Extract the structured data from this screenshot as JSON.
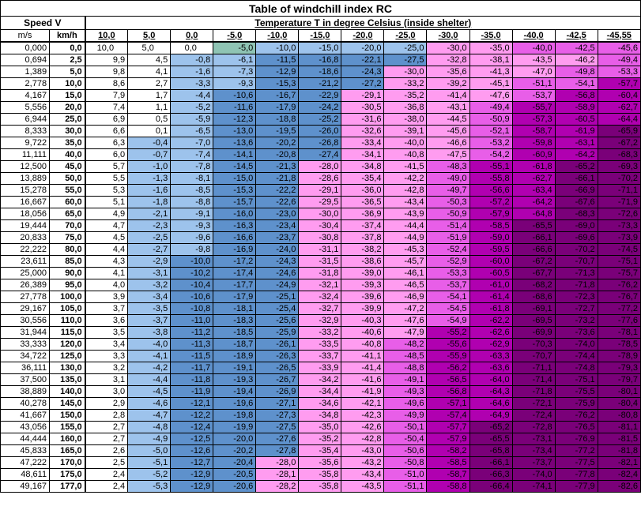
{
  "title": "Table of windchill index RC",
  "subtitle": "Temperature T in degree Celsius (inside shelter)",
  "speed_header": "Speed V",
  "unit_ms": "m/s",
  "unit_kmh": "km/h",
  "temperatures": [
    "10,0",
    "5,0",
    "0,0",
    "-5,0",
    "-10,0",
    "-15,0",
    "-20,0",
    "-25,0",
    "-30,0",
    "-35,0",
    "-40,0",
    "-42,5",
    "-45,55"
  ],
  "colors": {
    "white": "#ffffff",
    "light_blue": "#9dc3ec",
    "mid_blue": "#5e91cc",
    "teal": "#8fc4b4",
    "pink": "#ff9cf0",
    "magenta": "#e85ee8",
    "purple": "#b000b0",
    "dark_purple": "#7a0079",
    "light_lavender": "#e8a8e8"
  },
  "rows": [
    {
      "ms": "0,000",
      "kmh": "0,0",
      "v": [
        "10,0",
        "5,0",
        "0,0",
        "-5,0",
        "-10,0",
        "-15,0",
        "-20,0",
        "-25,0",
        "-30,0",
        "-35,0",
        "-40,0",
        "-42,5",
        "-45,6"
      ]
    },
    {
      "ms": "0,694",
      "kmh": "2,5",
      "v": [
        "9,9",
        "4,5",
        "-0,8",
        "-6,1",
        "-11,5",
        "-16,8",
        "-22,1",
        "-27,5",
        "-32,8",
        "-38,1",
        "-43,5",
        "-46,2",
        "-49,4"
      ]
    },
    {
      "ms": "1,389",
      "kmh": "5,0",
      "v": [
        "9,8",
        "4,1",
        "-1,6",
        "-7,3",
        "-12,9",
        "-18,6",
        "-24,3",
        "-30,0",
        "-35,6",
        "-41,3",
        "-47,0",
        "-49,8",
        "-53,3"
      ]
    },
    {
      "ms": "2,778",
      "kmh": "10,0",
      "v": [
        "8,6",
        "2,7",
        "-3,3",
        "-9,3",
        "-15,3",
        "-21,2",
        "-27,2",
        "-33,2",
        "-39,2",
        "-45,1",
        "-51,1",
        "-54,1",
        "-57,7"
      ]
    },
    {
      "ms": "4,167",
      "kmh": "15,0",
      "v": [
        "7,9",
        "1,7",
        "-4,4",
        "-10,6",
        "-16,7",
        "-22,9",
        "-29,1",
        "-35,2",
        "-41,4",
        "-47,6",
        "-53,7",
        "-56,8",
        "-60,4"
      ]
    },
    {
      "ms": "5,556",
      "kmh": "20,0",
      "v": [
        "7,4",
        "1,1",
        "-5,2",
        "-11,6",
        "-17,9",
        "-24,2",
        "-30,5",
        "-36,8",
        "-43,1",
        "-49,4",
        "-55,7",
        "-58,9",
        "-62,7"
      ]
    },
    {
      "ms": "6,944",
      "kmh": "25,0",
      "v": [
        "6,9",
        "0,5",
        "-5,9",
        "-12,3",
        "-18,8",
        "-25,2",
        "-31,6",
        "-38,0",
        "-44,5",
        "-50,9",
        "-57,3",
        "-60,5",
        "-64,4"
      ]
    },
    {
      "ms": "8,333",
      "kmh": "30,0",
      "v": [
        "6,6",
        "0,1",
        "-6,5",
        "-13,0",
        "-19,5",
        "-26,0",
        "-32,6",
        "-39,1",
        "-45,6",
        "-52,1",
        "-58,7",
        "-61,9",
        "-65,9"
      ]
    },
    {
      "ms": "9,722",
      "kmh": "35,0",
      "v": [
        "6,3",
        "-0,4",
        "-7,0",
        "-13,6",
        "-20,2",
        "-26,8",
        "-33,4",
        "-40,0",
        "-46,6",
        "-53,2",
        "-59,8",
        "-63,1",
        "-67,2"
      ]
    },
    {
      "ms": "11,111",
      "kmh": "40,0",
      "v": [
        "6,0",
        "-0,7",
        "-7,4",
        "-14,1",
        "-20,8",
        "-27,4",
        "-34,1",
        "-40,8",
        "-47,5",
        "-54,2",
        "-60,9",
        "-64,2",
        "-68,3"
      ]
    },
    {
      "ms": "12,500",
      "kmh": "45,0",
      "v": [
        "5,7",
        "-1,0",
        "-7,8",
        "-14,5",
        "-21,3",
        "-28,0",
        "-34,8",
        "-41,5",
        "-48,3",
        "-55,1",
        "-61,8",
        "-65,2",
        "-69,3"
      ]
    },
    {
      "ms": "13,889",
      "kmh": "50,0",
      "v": [
        "5,5",
        "-1,3",
        "-8,1",
        "-15,0",
        "-21,8",
        "-28,6",
        "-35,4",
        "-42,2",
        "-49,0",
        "-55,8",
        "-62,7",
        "-66,1",
        "-70,2"
      ]
    },
    {
      "ms": "15,278",
      "kmh": "55,0",
      "v": [
        "5,3",
        "-1,6",
        "-8,5",
        "-15,3",
        "-22,2",
        "-29,1",
        "-36,0",
        "-42,8",
        "-49,7",
        "-56,6",
        "-63,4",
        "-66,9",
        "-71,1"
      ]
    },
    {
      "ms": "16,667",
      "kmh": "60,0",
      "v": [
        "5,1",
        "-1,8",
        "-8,8",
        "-15,7",
        "-22,6",
        "-29,5",
        "-36,5",
        "-43,4",
        "-50,3",
        "-57,2",
        "-64,2",
        "-67,6",
        "-71,9"
      ]
    },
    {
      "ms": "18,056",
      "kmh": "65,0",
      "v": [
        "4,9",
        "-2,1",
        "-9,1",
        "-16,0",
        "-23,0",
        "-30,0",
        "-36,9",
        "-43,9",
        "-50,9",
        "-57,9",
        "-64,8",
        "-68,3",
        "-72,6"
      ]
    },
    {
      "ms": "19,444",
      "kmh": "70,0",
      "v": [
        "4,7",
        "-2,3",
        "-9,3",
        "-16,3",
        "-23,4",
        "-30,4",
        "-37,4",
        "-44,4",
        "-51,4",
        "-58,5",
        "-65,5",
        "-69,0",
        "-73,3"
      ]
    },
    {
      "ms": "20,833",
      "kmh": "75,0",
      "v": [
        "4,5",
        "-2,5",
        "-9,6",
        "-16,6",
        "-23,7",
        "-30,8",
        "-37,8",
        "-44,9",
        "-51,9",
        "-59,0",
        "-66,1",
        "-69,6",
        "-73,9"
      ]
    },
    {
      "ms": "22,222",
      "kmh": "80,0",
      "v": [
        "4,4",
        "-2,7",
        "-9,8",
        "-16,9",
        "-24,0",
        "-31,1",
        "-38,2",
        "-45,3",
        "-52,4",
        "-59,5",
        "-66,6",
        "-70,2",
        "-74,5"
      ]
    },
    {
      "ms": "23,611",
      "kmh": "85,0",
      "v": [
        "4,3",
        "-2,9",
        "-10,0",
        "-17,2",
        "-24,3",
        "-31,5",
        "-38,6",
        "-45,7",
        "-52,9",
        "-60,0",
        "-67,2",
        "-70,7",
        "-75,1"
      ]
    },
    {
      "ms": "25,000",
      "kmh": "90,0",
      "v": [
        "4,1",
        "-3,1",
        "-10,2",
        "-17,4",
        "-24,6",
        "-31,8",
        "-39,0",
        "-46,1",
        "-53,3",
        "-60,5",
        "-67,7",
        "-71,3",
        "-75,7"
      ]
    },
    {
      "ms": "26,389",
      "kmh": "95,0",
      "v": [
        "4,0",
        "-3,2",
        "-10,4",
        "-17,7",
        "-24,9",
        "-32,1",
        "-39,3",
        "-46,5",
        "-53,7",
        "-61,0",
        "-68,2",
        "-71,8",
        "-76,2"
      ]
    },
    {
      "ms": "27,778",
      "kmh": "100,0",
      "v": [
        "3,9",
        "-3,4",
        "-10,6",
        "-17,9",
        "-25,1",
        "-32,4",
        "-39,6",
        "-46,9",
        "-54,1",
        "-61,4",
        "-68,6",
        "-72,3",
        "-76,7"
      ]
    },
    {
      "ms": "29,167",
      "kmh": "105,0",
      "v": [
        "3,7",
        "-3,5",
        "-10,8",
        "-18,1",
        "-25,4",
        "-32,7",
        "-39,9",
        "-47,2",
        "-54,5",
        "-61,8",
        "-69,1",
        "-72,7",
        "-77,2"
      ]
    },
    {
      "ms": "30,556",
      "kmh": "110,0",
      "v": [
        "3,6",
        "-3,7",
        "-11,0",
        "-18,3",
        "-25,6",
        "-32,9",
        "-40,3",
        "-47,6",
        "-54,9",
        "-62,2",
        "-69,5",
        "-73,2",
        "-77,6"
      ]
    },
    {
      "ms": "31,944",
      "kmh": "115,0",
      "v": [
        "3,5",
        "-3,8",
        "-11,2",
        "-18,5",
        "-25,9",
        "-33,2",
        "-40,6",
        "-47,9",
        "-55,2",
        "-62,6",
        "-69,9",
        "-73,6",
        "-78,1"
      ]
    },
    {
      "ms": "33,333",
      "kmh": "120,0",
      "v": [
        "3,4",
        "-4,0",
        "-11,3",
        "-18,7",
        "-26,1",
        "-33,5",
        "-40,8",
        "-48,2",
        "-55,6",
        "-62,9",
        "-70,3",
        "-74,0",
        "-78,5"
      ]
    },
    {
      "ms": "34,722",
      "kmh": "125,0",
      "v": [
        "3,3",
        "-4,1",
        "-11,5",
        "-18,9",
        "-26,3",
        "-33,7",
        "-41,1",
        "-48,5",
        "-55,9",
        "-63,3",
        "-70,7",
        "-74,4",
        "-78,9"
      ]
    },
    {
      "ms": "36,111",
      "kmh": "130,0",
      "v": [
        "3,2",
        "-4,2",
        "-11,7",
        "-19,1",
        "-26,5",
        "-33,9",
        "-41,4",
        "-48,8",
        "-56,2",
        "-63,6",
        "-71,1",
        "-74,8",
        "-79,3"
      ]
    },
    {
      "ms": "37,500",
      "kmh": "135,0",
      "v": [
        "3,1",
        "-4,4",
        "-11,8",
        "-19,3",
        "-26,7",
        "-34,2",
        "-41,6",
        "-49,1",
        "-56,5",
        "-64,0",
        "-71,4",
        "-75,1",
        "-79,7"
      ]
    },
    {
      "ms": "38,889",
      "kmh": "140,0",
      "v": [
        "3,0",
        "-4,5",
        "-11,9",
        "-19,4",
        "-26,9",
        "-34,4",
        "-41,9",
        "-49,3",
        "-56,8",
        "-64,3",
        "-71,8",
        "-75,5",
        "-80,1"
      ]
    },
    {
      "ms": "40,278",
      "kmh": "145,0",
      "v": [
        "2,9",
        "-4,6",
        "-12,1",
        "-19,6",
        "-27,1",
        "-34,6",
        "-42,1",
        "-49,6",
        "-57,1",
        "-64,6",
        "-72,1",
        "-75,9",
        "-80,4"
      ]
    },
    {
      "ms": "41,667",
      "kmh": "150,0",
      "v": [
        "2,8",
        "-4,7",
        "-12,2",
        "-19,8",
        "-27,3",
        "-34,8",
        "-42,3",
        "-49,9",
        "-57,4",
        "-64,9",
        "-72,4",
        "-76,2",
        "-80,8"
      ]
    },
    {
      "ms": "43,056",
      "kmh": "155,0",
      "v": [
        "2,7",
        "-4,8",
        "-12,4",
        "-19,9",
        "-27,5",
        "-35,0",
        "-42,6",
        "-50,1",
        "-57,7",
        "-65,2",
        "-72,8",
        "-76,5",
        "-81,1"
      ]
    },
    {
      "ms": "44,444",
      "kmh": "160,0",
      "v": [
        "2,7",
        "-4,9",
        "-12,5",
        "-20,0",
        "-27,6",
        "-35,2",
        "-42,8",
        "-50,4",
        "-57,9",
        "-65,5",
        "-73,1",
        "-76,9",
        "-81,5"
      ]
    },
    {
      "ms": "45,833",
      "kmh": "165,0",
      "v": [
        "2,6",
        "-5,0",
        "-12,6",
        "-20,2",
        "-27,8",
        "-35,4",
        "-43,0",
        "-50,6",
        "-58,2",
        "-65,8",
        "-73,4",
        "-77,2",
        "-81,8"
      ]
    },
    {
      "ms": "47,222",
      "kmh": "170,0",
      "v": [
        "2,5",
        "-5,1",
        "-12,7",
        "-20,4",
        "-28,0",
        "-35,6",
        "-43,2",
        "-50,8",
        "-58,5",
        "-66,1",
        "-73,7",
        "-77,5",
        "-82,1"
      ]
    },
    {
      "ms": "48,611",
      "kmh": "175,0",
      "v": [
        "2,4",
        "-5,2",
        "-12,9",
        "-20,5",
        "-28,1",
        "-35,8",
        "-43,4",
        "-51,0",
        "-58,7",
        "-66,3",
        "-74,0",
        "-77,8",
        "-82,4"
      ]
    },
    {
      "ms": "49,167",
      "kmh": "177,0",
      "v": [
        "2,4",
        "-5,3",
        "-12,9",
        "-20,6",
        "-28,2",
        "-35,8",
        "-43,5",
        "-51,1",
        "-58,8",
        "-66,4",
        "-74,1",
        "-77,9",
        "-82,6"
      ]
    }
  ]
}
